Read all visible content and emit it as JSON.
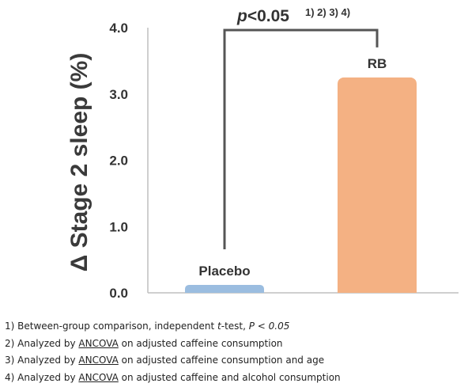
{
  "chart_data": {
    "type": "bar",
    "ylabel": "Δ Stage 2 sleep (%)",
    "ylim": [
      0,
      4.0
    ],
    "yticks": [
      "0.0",
      "1.0",
      "2.0",
      "3.0",
      "4.0"
    ],
    "grid": false,
    "categories": [
      "Placebo",
      "RB"
    ],
    "values": [
      0.12,
      3.25
    ],
    "colors": [
      "#9bbde0",
      "#f4b183"
    ],
    "significance": {
      "between": [
        "Placebo",
        "RB"
      ],
      "p_label": "p",
      "p_rest": "<0.05",
      "superscripts": "1) 2) 3) 4)"
    }
  },
  "footnotes": [
    {
      "num": "1)",
      "parts": [
        {
          "t": "Between-group comparison, independent "
        },
        {
          "t": "t",
          "i": true
        },
        {
          "t": "-test, "
        },
        {
          "t": "P < 0.05",
          "i": true
        }
      ]
    },
    {
      "num": "2)",
      "parts": [
        {
          "t": "Analyzed by "
        },
        {
          "t": "ANCOVA",
          "u": true
        },
        {
          "t": " on adjusted caffeine consumption"
        }
      ]
    },
    {
      "num": "3)",
      "parts": [
        {
          "t": "Analyzed by "
        },
        {
          "t": "ANCOVA",
          "u": true
        },
        {
          "t": " on adjusted caffeine consumption and age"
        }
      ]
    },
    {
      "num": "4)",
      "parts": [
        {
          "t": "Analyzed by "
        },
        {
          "t": "ANCOVA",
          "u": true
        },
        {
          "t": " on adjusted caffeine and alcohol consumption"
        }
      ]
    }
  ]
}
